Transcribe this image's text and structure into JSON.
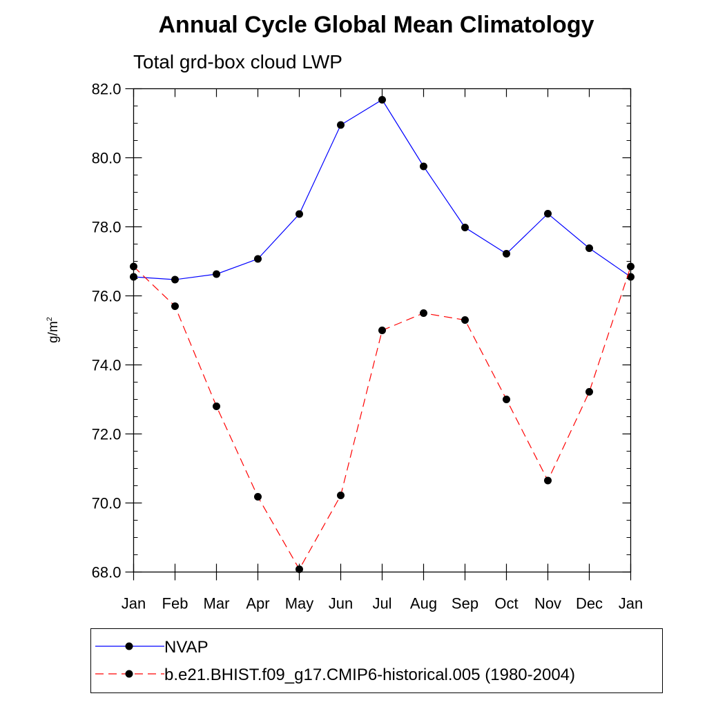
{
  "chart_data": {
    "type": "line",
    "title": "Annual Cycle Global Mean Climatology",
    "subtitle": "Total grd-box cloud LWP",
    "ylabel": "g/m",
    "ylabel_superscript": "2",
    "ylim": [
      68.0,
      82.0
    ],
    "yticks": [
      "68.0",
      "70.0",
      "72.0",
      "74.0",
      "76.0",
      "78.0",
      "80.0",
      "82.0"
    ],
    "categories": [
      "Jan",
      "Feb",
      "Mar",
      "Apr",
      "May",
      "Jun",
      "Jul",
      "Aug",
      "Sep",
      "Oct",
      "Nov",
      "Dec",
      "Jan"
    ],
    "series": [
      {
        "name": "NVAP",
        "color": "#0000ff",
        "style": "solid",
        "values": [
          76.55,
          76.47,
          76.63,
          77.07,
          78.37,
          80.95,
          81.68,
          79.75,
          77.98,
          77.22,
          78.38,
          77.38,
          76.55
        ]
      },
      {
        "name": "b.e21.BHIST.f09_g17.CMIP6-historical.005 (1980-2004)",
        "color": "#ff0000",
        "style": "dashed",
        "values": [
          76.85,
          75.7,
          72.8,
          70.18,
          68.08,
          70.22,
          75.0,
          75.5,
          75.3,
          73.0,
          70.65,
          73.22,
          76.85
        ]
      }
    ],
    "legend_position": "bottom"
  }
}
